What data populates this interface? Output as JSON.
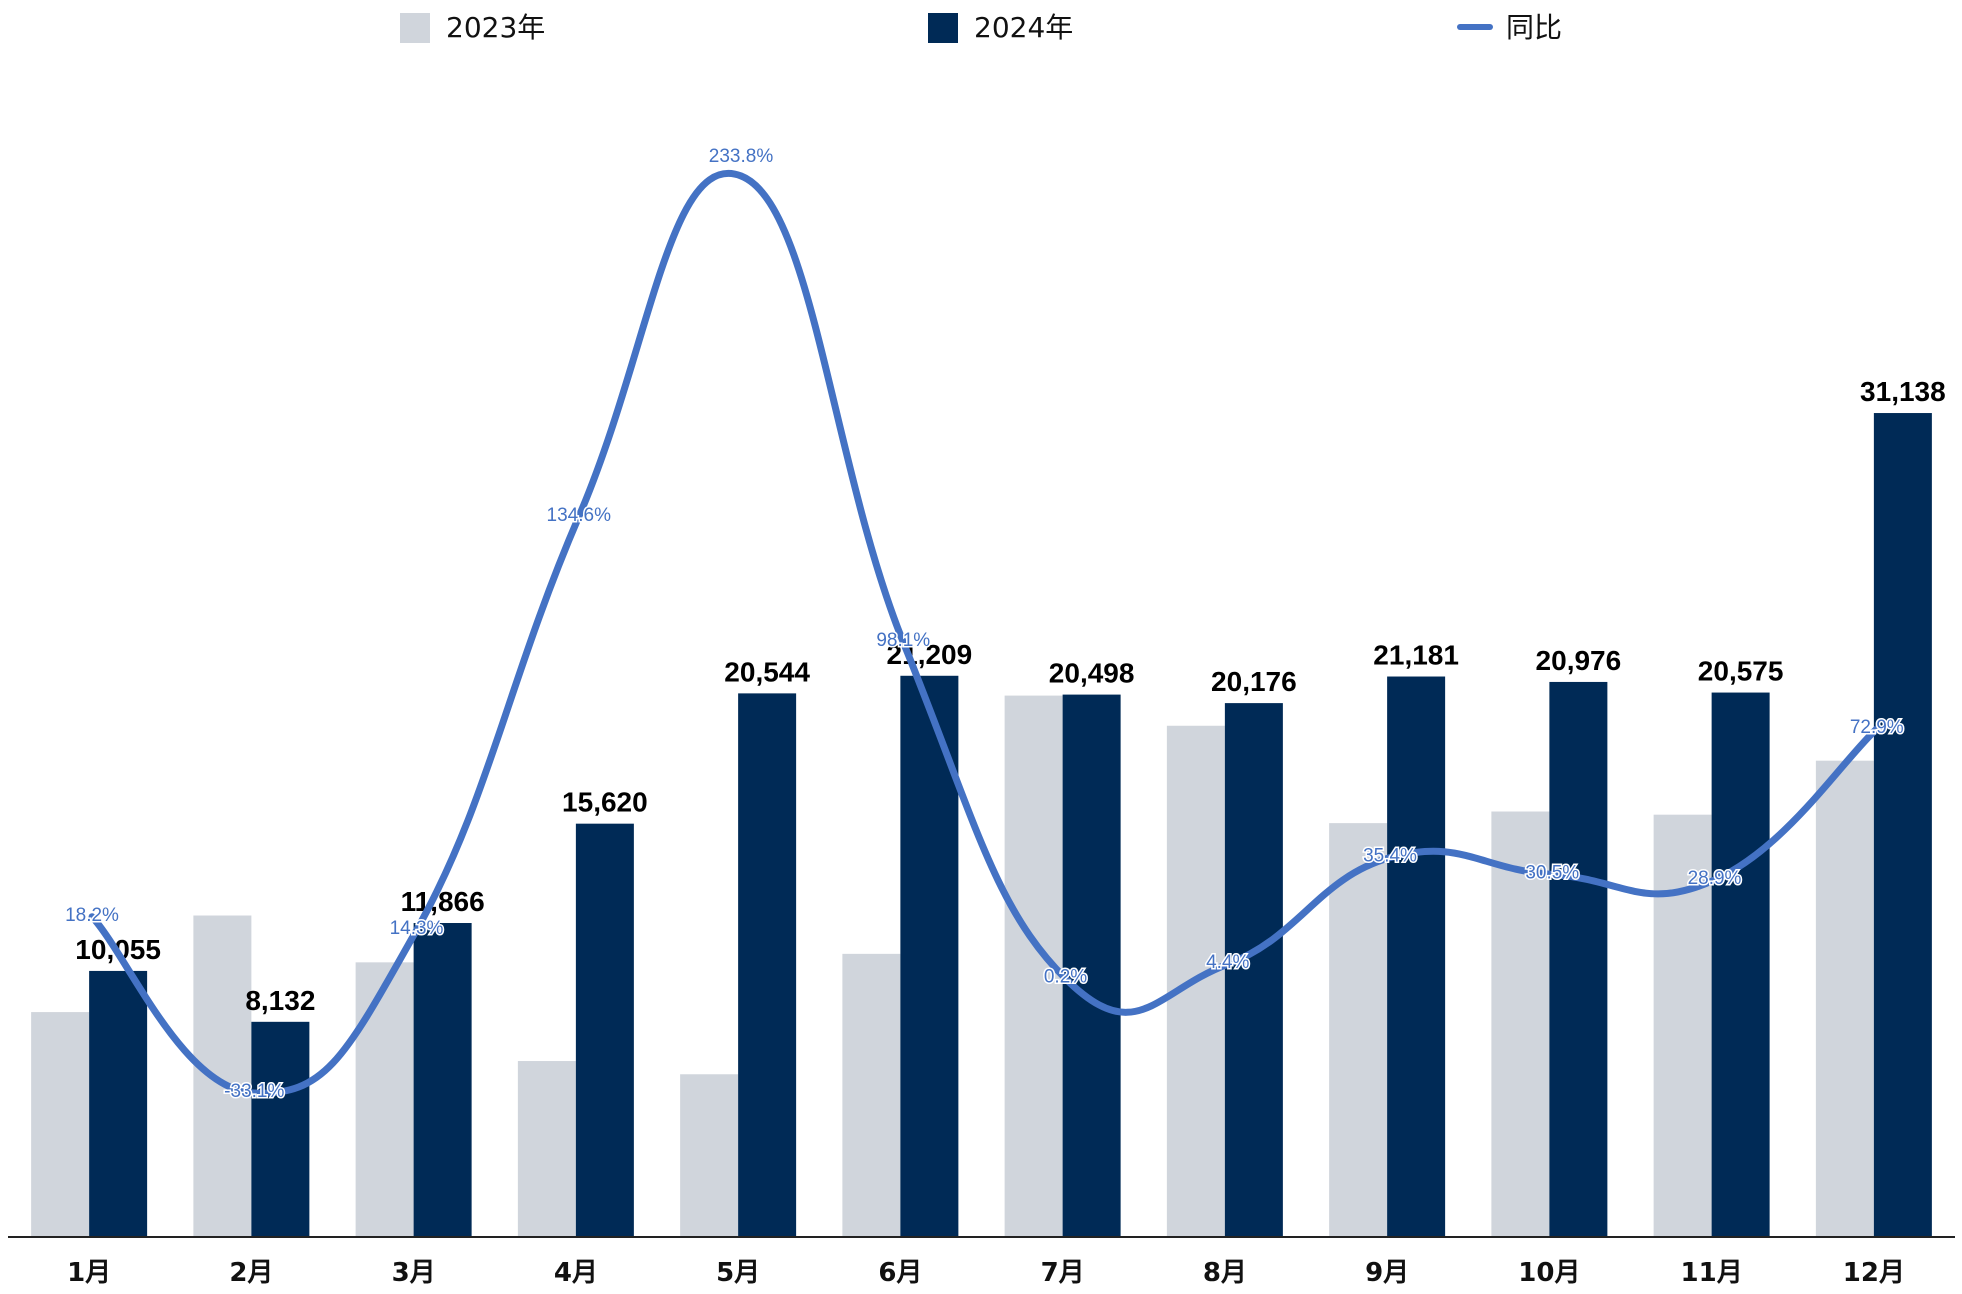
{
  "chart_data": {
    "type": "bar",
    "categories": [
      "1月",
      "2月",
      "3月",
      "4月",
      "5月",
      "6月",
      "7月",
      "8月",
      "9月",
      "10月",
      "11月",
      "12月"
    ],
    "series": [
      {
        "name": "2023年",
        "kind": "bar",
        "color": "#d0d5dc",
        "values": [
          8500,
          12150,
          10380,
          6650,
          6150,
          10700,
          20460,
          19320,
          15640,
          16080,
          15960,
          18000
        ]
      },
      {
        "name": "2024年",
        "kind": "bar",
        "color": "#002a56",
        "values": [
          10055,
          8132,
          11866,
          15620,
          20544,
          21209,
          20498,
          20176,
          21181,
          20976,
          20575,
          31138
        ],
        "labels": [
          "10,055",
          "8,132",
          "11,866",
          "15,620",
          "20,544",
          "21,209",
          "20,498",
          "20,176",
          "21,181",
          "20,976",
          "20,575",
          "31,138"
        ]
      },
      {
        "name": "同比",
        "kind": "line",
        "axis": "secondary",
        "color": "#4472c4",
        "values": [
          18.2,
          -33.1,
          14.3,
          134.6,
          233.8,
          98.1,
          0.2,
          4.4,
          35.4,
          30.5,
          28.9,
          72.9
        ],
        "labels": [
          "18.2%",
          "-33.1%",
          "14.3%",
          "134.6%",
          "233.8%",
          "98.1%",
          "0.2%",
          "4.4%",
          "35.4%",
          "30.5%",
          "28.9%",
          "72.9%"
        ]
      }
    ],
    "ylim": [
      0,
      39000
    ],
    "y2lim": [
      -75,
      285
    ],
    "grid": false,
    "legend": "top"
  }
}
